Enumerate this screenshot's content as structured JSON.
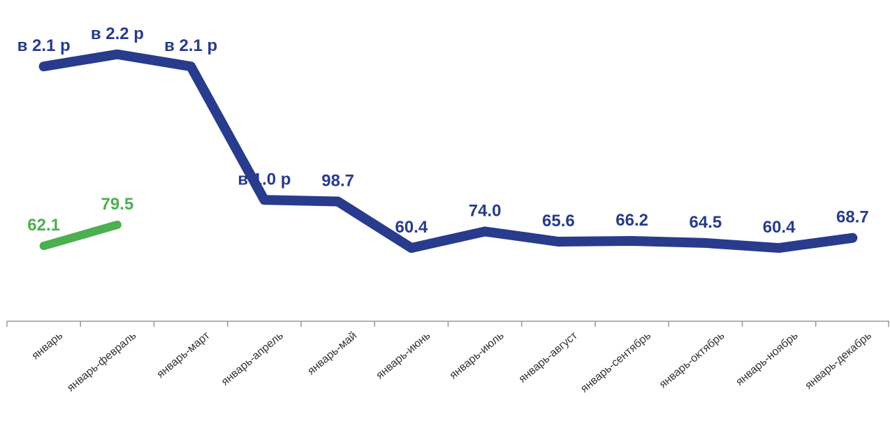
{
  "chart_data": {
    "type": "line",
    "categories": [
      "январь",
      "январь-февраль",
      "январь-март",
      "январь-апрель",
      "январь-май",
      "январь-июнь",
      "январь-июль",
      "январь-август",
      "январь-сентябрь",
      "январь-октябрь",
      "январь-ноябрь",
      "январь-декабрь"
    ],
    "series": [
      {
        "color": "#283b8c",
        "values": [
          210,
          220,
          210,
          100,
          98.7,
          60.4,
          74.0,
          65.6,
          66.2,
          64.5,
          60.4,
          68.7
        ],
        "value_labels": [
          "в 2.1 р",
          "в 2.2 р",
          "в 2.1 р",
          "в 1.0 р",
          "98.7",
          "60.4",
          "74.0",
          "65.6",
          "66.2",
          "64.5",
          "60.4",
          "68.7"
        ]
      },
      {
        "color": "#4caf50",
        "values": [
          62.1,
          79.5,
          null,
          null,
          null,
          null,
          null,
          null,
          null,
          null,
          null,
          null
        ]
      }
    ],
    "ylim": [
      0,
      240
    ]
  }
}
